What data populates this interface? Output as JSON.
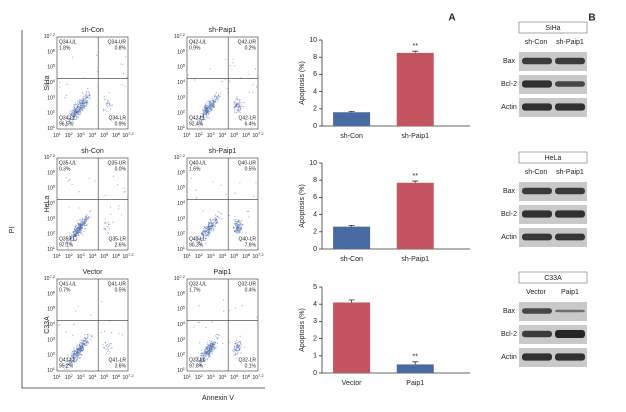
{
  "panel_letters": [
    "A",
    "B"
  ],
  "flow": {
    "y_title": "PI",
    "x_title": "Annexin V",
    "tick_base": "10",
    "ticks": [
      "1",
      "2",
      "3",
      "4",
      "5",
      "6",
      "7.2"
    ],
    "rows": [
      {
        "label": "SiHa",
        "panels": [
          {
            "title": "sh-Con",
            "quadrants": [
              [
                "Q34-UL",
                "1.8%"
              ],
              [
                "Q34-UR",
                "0.8%"
              ],
              [
                "Q34-LL",
                "96.5%"
              ],
              [
                "Q34-LR",
                "0.9%"
              ]
            ]
          },
          {
            "title": "sh-Paip1",
            "quadrants": [
              [
                "Q42-UL",
                "0.9%"
              ],
              [
                "Q42-UR",
                "0.2%"
              ],
              [
                "Q42-LL",
                "92.4%"
              ],
              [
                "Q42-LR",
                "6.4%"
              ]
            ]
          }
        ]
      },
      {
        "label": "HeLa",
        "panels": [
          {
            "title": "sh-Con",
            "quadrants": [
              [
                "Q35-UL",
                "0.3%"
              ],
              [
                "Q35-UR",
                "0.0%"
              ],
              [
                "Q35-LL",
                "97.1%"
              ],
              [
                "Q35-LR",
                "2.6%"
              ]
            ]
          },
          {
            "title": "sh-Paip1",
            "quadrants": [
              [
                "Q40-UL",
                "1.6%"
              ],
              [
                "Q40-UR",
                "0.5%"
              ],
              [
                "Q40-LL",
                "90.3%"
              ],
              [
                "Q40-LR",
                "7.6%"
              ]
            ]
          }
        ]
      },
      {
        "label": "C33A",
        "panels": [
          {
            "title": "Vector",
            "quadrants": [
              [
                "Q41-UL",
                "0.7%"
              ],
              [
                "Q41-UR",
                "0.5%"
              ],
              [
                "Q41-LL",
                "95.2%"
              ],
              [
                "Q41-LR",
                "3.6%"
              ]
            ]
          },
          {
            "title": "Paip1",
            "quadrants": [
              [
                "Q32-UL",
                "1.7%"
              ],
              [
                "Q32-UR",
                "0.4%"
              ],
              [
                "Q32-LL",
                "97.8%"
              ],
              [
                "Q32-LR",
                "0.1%"
              ]
            ]
          }
        ]
      }
    ]
  },
  "chart_data": [
    {
      "type": "bar",
      "ylabel": "Apoptosis (%)",
      "categories": [
        "sh-Con",
        "sh-Paip1"
      ],
      "values": [
        1.6,
        8.5
      ],
      "errors": [
        0.1,
        0.2
      ],
      "colors": [
        "#4a6aa3",
        "#c4545f"
      ],
      "ylim": [
        0,
        10
      ],
      "yticks": [
        0,
        2,
        4,
        6,
        8,
        10
      ],
      "annotation": "**"
    },
    {
      "type": "bar",
      "ylabel": "Apoptosis (%)",
      "categories": [
        "sh-Con",
        "sh-Paip1"
      ],
      "values": [
        2.6,
        7.7
      ],
      "errors": [
        0.15,
        0.2
      ],
      "colors": [
        "#4a6aa3",
        "#c4545f"
      ],
      "ylim": [
        0,
        10
      ],
      "yticks": [
        0,
        2,
        4,
        6,
        8,
        10
      ],
      "annotation": "**"
    },
    {
      "type": "bar",
      "ylabel": "Apoptosis (%)",
      "categories": [
        "Vector",
        "Paip1"
      ],
      "values": [
        4.1,
        0.5
      ],
      "errors": [
        0.15,
        0.15
      ],
      "colors": [
        "#c4545f",
        "#4a6aa3"
      ],
      "ylim": [
        0,
        5
      ],
      "yticks": [
        0,
        1,
        2,
        3,
        4,
        5
      ],
      "annotation": "**"
    }
  ],
  "blots": [
    {
      "cell": "SiHa",
      "lanes": [
        "sh-Con",
        "sh-Paip1"
      ],
      "rows": [
        "Bax",
        "Bcl-2",
        "Actin"
      ]
    },
    {
      "cell": "HeLa",
      "lanes": [
        "sh-Con",
        "sh-Paip1"
      ],
      "rows": [
        "Bax",
        "Bcl-2",
        "Actin"
      ]
    },
    {
      "cell": "C33A",
      "lanes": [
        "Vector",
        "Paip1"
      ],
      "rows": [
        "Bax",
        "Bcl-2",
        "Actin"
      ]
    }
  ]
}
